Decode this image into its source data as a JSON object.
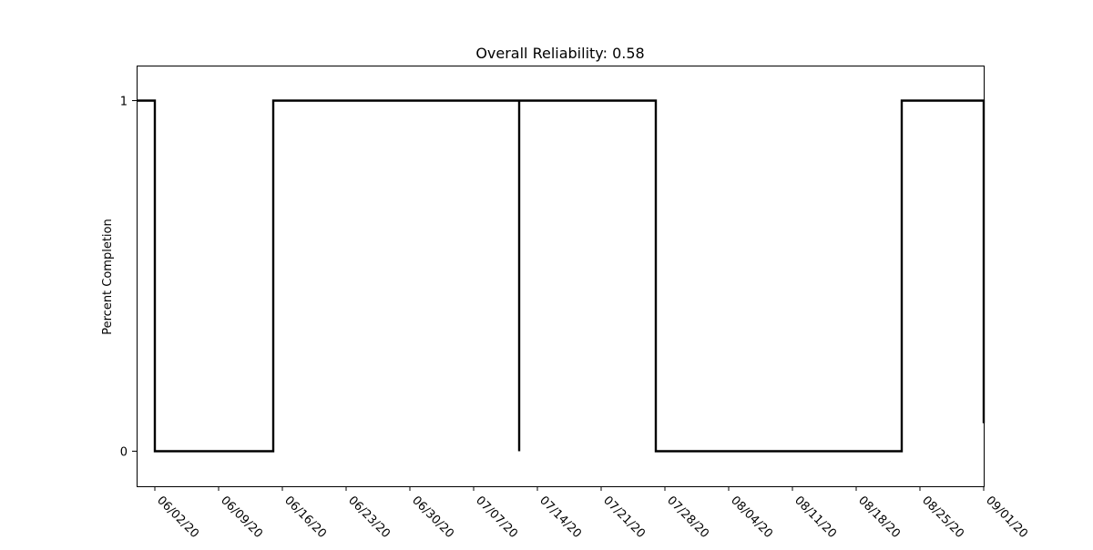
{
  "chart_data": {
    "type": "line",
    "title": "Overall Reliability: 0.58",
    "xlabel": "",
    "ylabel": "Percent Completion",
    "x_is_date": true,
    "xlim": [
      "2020-05-31",
      "2020-09-01"
    ],
    "ylim": [
      -0.1,
      1.1
    ],
    "yticks": [
      {
        "value": 0,
        "label": "0"
      },
      {
        "value": 1,
        "label": "1"
      }
    ],
    "xticks": [
      {
        "date": "2020-06-02",
        "label": "06/02/20"
      },
      {
        "date": "2020-06-09",
        "label": "06/09/20"
      },
      {
        "date": "2020-06-16",
        "label": "06/16/20"
      },
      {
        "date": "2020-06-23",
        "label": "06/23/20"
      },
      {
        "date": "2020-06-30",
        "label": "06/30/20"
      },
      {
        "date": "2020-07-07",
        "label": "07/07/20"
      },
      {
        "date": "2020-07-14",
        "label": "07/14/20"
      },
      {
        "date": "2020-07-21",
        "label": "07/21/20"
      },
      {
        "date": "2020-07-28",
        "label": "07/28/20"
      },
      {
        "date": "2020-08-04",
        "label": "08/04/20"
      },
      {
        "date": "2020-08-11",
        "label": "08/11/20"
      },
      {
        "date": "2020-08-18",
        "label": "08/18/20"
      },
      {
        "date": "2020-08-25",
        "label": "08/25/20"
      },
      {
        "date": "2020-09-01",
        "label": "09/01/20"
      }
    ],
    "grid": false,
    "series": [
      {
        "color": "#000000",
        "points": [
          [
            "2020-05-31",
            1
          ],
          [
            "2020-06-02",
            1
          ],
          [
            "2020-06-02",
            0.33
          ],
          [
            "2020-06-02",
            0
          ],
          [
            "2020-06-15",
            0
          ],
          [
            "2020-06-15",
            0.25
          ],
          [
            "2020-06-15",
            1
          ],
          [
            "2020-07-12",
            1
          ],
          [
            "2020-07-12",
            0.33
          ],
          [
            "2020-07-12",
            0
          ],
          [
            "2020-07-12",
            1
          ],
          [
            "2020-07-27",
            1
          ],
          [
            "2020-07-27",
            0.58
          ],
          [
            "2020-07-27",
            0
          ],
          [
            "2020-08-23",
            0
          ],
          [
            "2020-08-23",
            0.08
          ],
          [
            "2020-08-23",
            1
          ],
          [
            "2020-09-01",
            1
          ],
          [
            "2020-09-01",
            0.08
          ]
        ]
      }
    ]
  }
}
